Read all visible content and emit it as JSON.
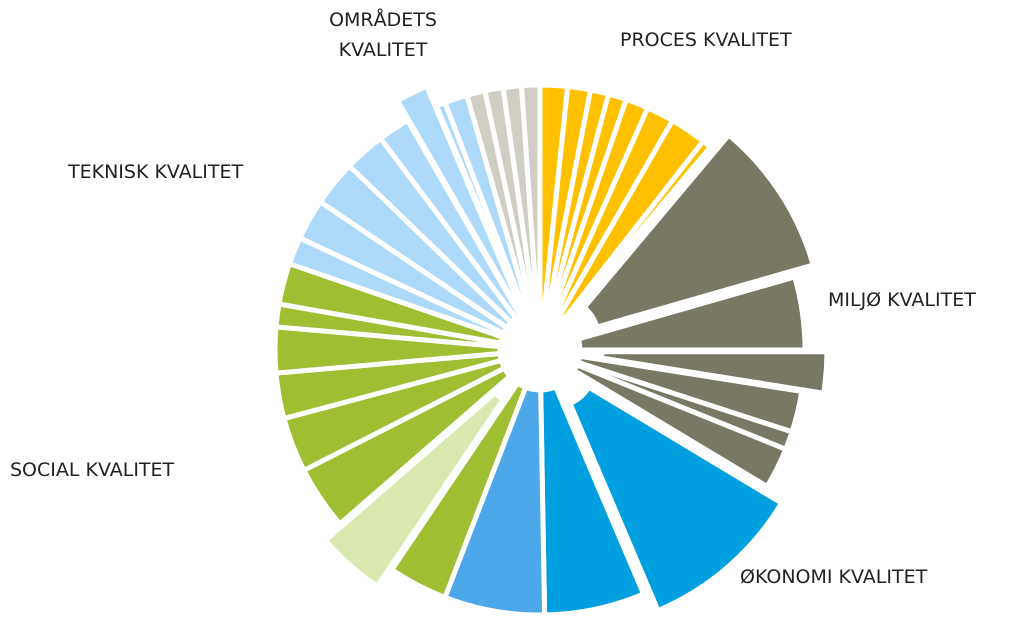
{
  "chart_data": {
    "type": "pie",
    "groups": [
      {
        "name": "PROCES KVALITET",
        "values": [
          6,
          5,
          4,
          4,
          5,
          6,
          8,
          2
        ],
        "colors": [
          "#FFC000",
          "#FFC000",
          "#FFC000",
          "#FFC000",
          "#FFC000",
          "#FFC000",
          "#FFC000",
          "#FFC000"
        ],
        "exploded": [
          false,
          false,
          false,
          false,
          false,
          false,
          false,
          false
        ]
      },
      {
        "name": "MILJØ KVALITET",
        "values": [
          34,
          16,
          9,
          9,
          4,
          9
        ],
        "colors": [
          "#787864",
          "#787864",
          "#787864",
          "#787864",
          "#787864",
          "#787864"
        ],
        "exploded": [
          true,
          false,
          true,
          false,
          false,
          false
        ]
      },
      {
        "name": "ØKONOMI KVALITET",
        "values": [
          36,
          22,
          22
        ],
        "colors": [
          "#00A0E0",
          "#00A0E0",
          "#4DA8EA"
        ],
        "exploded": [
          true,
          false,
          false
        ]
      },
      {
        "name": "SOCIAL KVALITET",
        "values": [
          13,
          15,
          14,
          12,
          10,
          10,
          5,
          9
        ],
        "colors": [
          "#A0BE32",
          "#D9E8AE",
          "#A0BE32",
          "#A0BE32",
          "#A0BE32",
          "#A0BE32",
          "#A0BE32",
          "#A0BE32"
        ],
        "exploded": [
          false,
          true,
          false,
          false,
          false,
          false,
          false,
          false
        ]
      },
      {
        "name": "TEKNISK KVALITET",
        "values": [
          6,
          9,
          10,
          9,
          7,
          7,
          2,
          5
        ],
        "colors": [
          "#ADDAFA",
          "#ADDAFA",
          "#ADDAFA",
          "#ADDAFA",
          "#ADDAFA",
          "#ADDAFA",
          "#ADDAFA",
          "#ADDAFA"
        ],
        "exploded": [
          false,
          false,
          false,
          false,
          false,
          true,
          false,
          false
        ]
      },
      {
        "name": "OMRÅDETS KVALITET",
        "values": [
          4,
          4,
          4,
          4
        ],
        "colors": [
          "#D0CEC4",
          "#D0CEC4",
          "#D0CEC4",
          "#D0CEC4"
        ],
        "exploded": [
          false,
          false,
          false,
          false
        ]
      }
    ]
  }
}
